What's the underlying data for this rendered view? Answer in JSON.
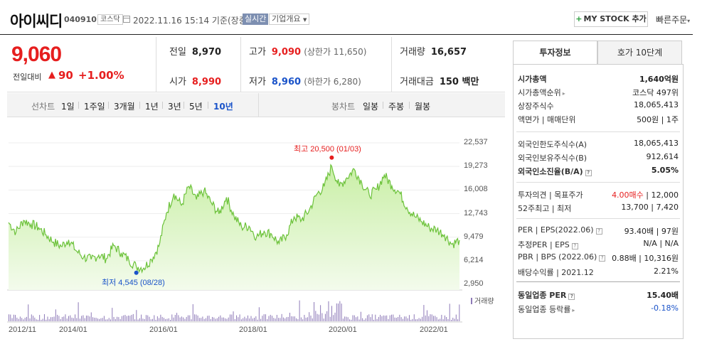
{
  "header": {
    "company": "아이씨디",
    "code": "040910",
    "market": "코스닥",
    "datetime": "2022.11.16 15:14 기준(장중)",
    "live": "실시간",
    "overview": "기업개요",
    "mystock": "MY STOCK 추가",
    "quick_order": "빠른주문"
  },
  "price": {
    "current": "9,060",
    "change_label": "전일대비",
    "change_value": "90",
    "change_rate": "+1.00%"
  },
  "stats": {
    "prev_label": "전일",
    "prev": "8,970",
    "high_label": "고가",
    "high": "9,090",
    "upper_limit": "(상한가 11,650)",
    "volume_label": "거래량",
    "volume": "16,657",
    "open_label": "시가",
    "open": "8,990",
    "low_label": "저가",
    "low": "8,960",
    "lower_limit": "(하한가 6,280)",
    "amount_label": "거래대금",
    "amount": "150 백만"
  },
  "tabs": {
    "line_label": "선차트",
    "line_periods": [
      "1일",
      "1주일",
      "3개월",
      "1년",
      "3년",
      "5년",
      "10년"
    ],
    "line_active": "10년",
    "candle_label": "봉차트",
    "candle_periods": [
      "일봉",
      "주봉",
      "월봉"
    ]
  },
  "chart_data": {
    "type": "area",
    "y_ticks": [
      "22,537",
      "19,273",
      "16,008",
      "12,743",
      "9,479",
      "6,214",
      "2,950"
    ],
    "ylim": [
      2950,
      22537
    ],
    "x_ticks": [
      "2012/11",
      "2014/01",
      "2016/01",
      "2018/01",
      "2020/01",
      "2022/01"
    ],
    "max_label": "최고 20,500 (01/03)",
    "min_label": "최저 4,545 (08/28)",
    "volume_label": "거래량",
    "fill_color": "#c9efa6",
    "line_color": "#6cc23a",
    "volume_color": "#8e7ab8",
    "series": [
      [
        "2012/11",
        11500
      ],
      [
        "2013/01",
        10200
      ],
      [
        "2013/03",
        11800
      ],
      [
        "2013/05",
        11300
      ],
      [
        "2013/07",
        10800
      ],
      [
        "2013/09",
        9800
      ],
      [
        "2013/11",
        8800
      ],
      [
        "2014/01",
        8200
      ],
      [
        "2014/03",
        9100
      ],
      [
        "2014/05",
        7600
      ],
      [
        "2014/07",
        6700
      ],
      [
        "2014/09",
        6400
      ],
      [
        "2014/11",
        7000
      ],
      [
        "2015/01",
        6500
      ],
      [
        "2015/03",
        8300
      ],
      [
        "2015/05",
        7300
      ],
      [
        "2015/07",
        6300
      ],
      [
        "2015/09",
        5400
      ],
      [
        "2015/11",
        5200
      ],
      [
        "2016/01",
        6400
      ],
      [
        "2016/03",
        8200
      ],
      [
        "2016/05",
        12800
      ],
      [
        "2016/07",
        15500
      ],
      [
        "2016/09",
        13900
      ],
      [
        "2016/11",
        16500
      ],
      [
        "2017/01",
        14700
      ],
      [
        "2017/03",
        15900
      ],
      [
        "2017/05",
        14200
      ],
      [
        "2017/07",
        12700
      ],
      [
        "2017/09",
        15000
      ],
      [
        "2017/11",
        12400
      ],
      [
        "2018/01",
        10900
      ],
      [
        "2018/03",
        11000
      ],
      [
        "2018/05",
        9500
      ],
      [
        "2018/07",
        10300
      ],
      [
        "2018/09",
        9900
      ],
      [
        "2018/11",
        8600
      ],
      [
        "2019/01",
        9800
      ],
      [
        "2019/03",
        12300
      ],
      [
        "2019/05",
        11900
      ],
      [
        "2019/07",
        13200
      ],
      [
        "2019/09",
        15400
      ],
      [
        "2019/11",
        16500
      ],
      [
        "2020/01",
        19300
      ],
      [
        "2020/03",
        16500
      ],
      [
        "2020/05",
        17700
      ],
      [
        "2020/07",
        18900
      ],
      [
        "2020/09",
        17000
      ],
      [
        "2020/11",
        15300
      ],
      [
        "2021/01",
        16100
      ],
      [
        "2021/03",
        18100
      ],
      [
        "2021/05",
        16600
      ],
      [
        "2021/07",
        15700
      ],
      [
        "2021/09",
        13600
      ],
      [
        "2021/11",
        12400
      ],
      [
        "2022/01",
        11600
      ],
      [
        "2022/03",
        10800
      ],
      [
        "2022/05",
        10500
      ],
      [
        "2022/07",
        9800
      ],
      [
        "2022/09",
        8500
      ],
      [
        "2022/11",
        9060
      ]
    ]
  },
  "right_panel": {
    "tab_active": "투자정보",
    "tab_other": "호가 10단계",
    "rows": [
      {
        "k": "시가총액",
        "v": "1,640억원",
        "bold": true
      },
      {
        "k": "시가총액순위",
        "v": "코스닥 497위"
      },
      {
        "k": "상장주식수",
        "v": "18,065,413"
      },
      {
        "k": "액면가 | 매매단위",
        "v": "500원 | 1주"
      },
      {
        "k": "외국인한도주식수(A)",
        "v": "18,065,413"
      },
      {
        "k": "외국인보유주식수(B)",
        "v": "912,614"
      },
      {
        "k": "외국인소진율(B/A)",
        "v": "5.05%",
        "bold": true
      },
      {
        "k": "투자의견 | 목표주가",
        "v_red": "4.00매수",
        "v": " | 12,000"
      },
      {
        "k": "52주최고 | 최저",
        "v": "13,700 | 7,420"
      },
      {
        "k": "PER | EPS(2022.06)",
        "v": "93.40배 | 97원"
      },
      {
        "k": "추정PER | EPS",
        "v": "N/A | N/A"
      },
      {
        "k": "PBR | BPS (2022.06)",
        "v": "0.88배 | 10,316원"
      },
      {
        "k": "배당수익률 | 2021.12",
        "v": "2.21%"
      },
      {
        "k": "동일업종 PER",
        "v": "15.40배",
        "bold": true
      },
      {
        "k": "동일업종 등락률",
        "v": "-0.18%",
        "blue": true
      }
    ]
  }
}
